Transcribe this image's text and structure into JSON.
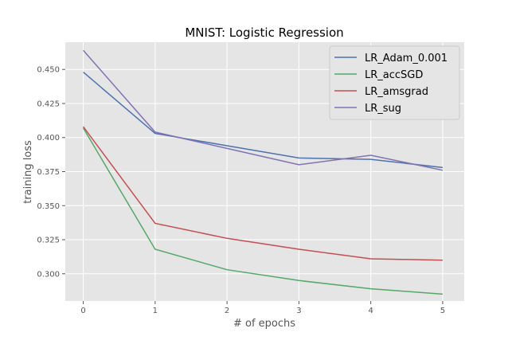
{
  "chart_data": {
    "type": "line",
    "title": "MNIST: Logistic Regression",
    "xlabel": "# of epochs",
    "ylabel": "training loss",
    "x": [
      0,
      1,
      2,
      3,
      4,
      5
    ],
    "xlim": [
      -0.25,
      5.3
    ],
    "ylim": [
      0.28,
      0.47
    ],
    "xticks": [
      "0",
      "1",
      "2",
      "3",
      "4",
      "5"
    ],
    "yticks": [
      "0.300",
      "0.325",
      "0.350",
      "0.375",
      "0.400",
      "0.425",
      "0.450"
    ],
    "grid": true,
    "legend_position": "top-right",
    "series": [
      {
        "name": "LR_Adam_0.001",
        "color": "#4c72b0",
        "values": [
          0.448,
          0.403,
          0.394,
          0.385,
          0.384,
          0.378
        ]
      },
      {
        "name": "LR_accSGD",
        "color": "#55a868",
        "values": [
          0.407,
          0.318,
          0.303,
          0.295,
          0.289,
          0.285
        ]
      },
      {
        "name": "LR_amsgrad",
        "color": "#c44e52",
        "values": [
          0.408,
          0.337,
          0.326,
          0.318,
          0.311,
          0.31
        ]
      },
      {
        "name": "LR_sug",
        "color": "#8172b2",
        "values": [
          0.464,
          0.404,
          0.392,
          0.38,
          0.387,
          0.376
        ]
      }
    ]
  }
}
